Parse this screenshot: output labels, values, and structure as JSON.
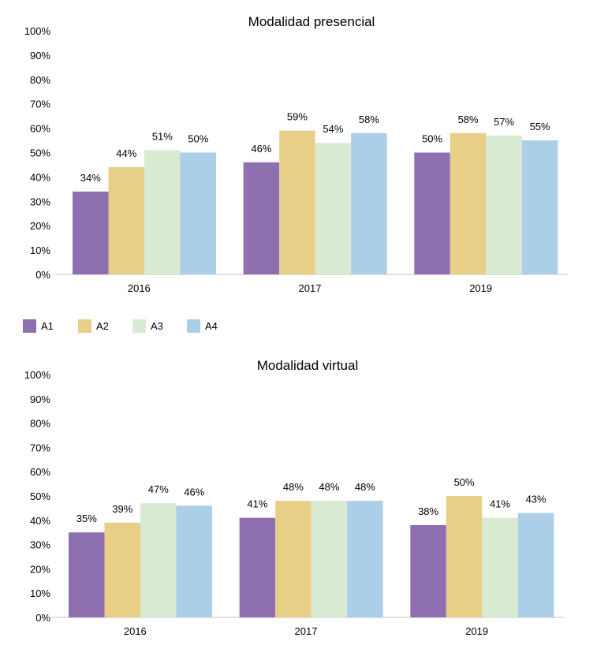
{
  "chart_data": [
    {
      "type": "bar",
      "title": "Modalidad presencial",
      "categories": [
        "2016",
        "2017",
        "2019"
      ],
      "ylim": [
        0,
        100
      ],
      "yticks": [
        "0%",
        "10%",
        "20%",
        "30%",
        "40%",
        "50%",
        "60%",
        "70%",
        "80%",
        "90%",
        "100%"
      ],
      "grid": false,
      "series": [
        {
          "name": "A1",
          "color": "#8e6fb0",
          "values": [
            34,
            46,
            50
          ]
        },
        {
          "name": "A2",
          "color": "#e8cf88",
          "values": [
            44,
            59,
            58
          ]
        },
        {
          "name": "A3",
          "color": "#d9ead3",
          "values": [
            51,
            54,
            57
          ]
        },
        {
          "name": "A4",
          "color": "#abcfe8",
          "values": [
            50,
            58,
            55
          ]
        }
      ]
    },
    {
      "type": "bar",
      "title": "Modalidad virtual",
      "categories": [
        "2016",
        "2017",
        "2019"
      ],
      "ylim": [
        0,
        100
      ],
      "yticks": [
        "0%",
        "10%",
        "20%",
        "30%",
        "40%",
        "50%",
        "60%",
        "70%",
        "80%",
        "90%",
        "100%"
      ],
      "grid": false,
      "series": [
        {
          "name": "A1",
          "color": "#8e6fb0",
          "values": [
            35,
            41,
            38
          ]
        },
        {
          "name": "A2",
          "color": "#e8cf88",
          "values": [
            39,
            48,
            50
          ]
        },
        {
          "name": "A3",
          "color": "#d9ead3",
          "values": [
            47,
            48,
            41
          ]
        },
        {
          "name": "A4",
          "color": "#abcfe8",
          "values": [
            46,
            48,
            43
          ]
        }
      ]
    }
  ],
  "legend": {
    "placement": "between charts, left",
    "items": [
      {
        "label": "A1",
        "color": "#8e6fb0"
      },
      {
        "label": "A2",
        "color": "#e8cf88"
      },
      {
        "label": "A3",
        "color": "#d9ead3"
      },
      {
        "label": "A4",
        "color": "#abcfe8"
      }
    ]
  }
}
